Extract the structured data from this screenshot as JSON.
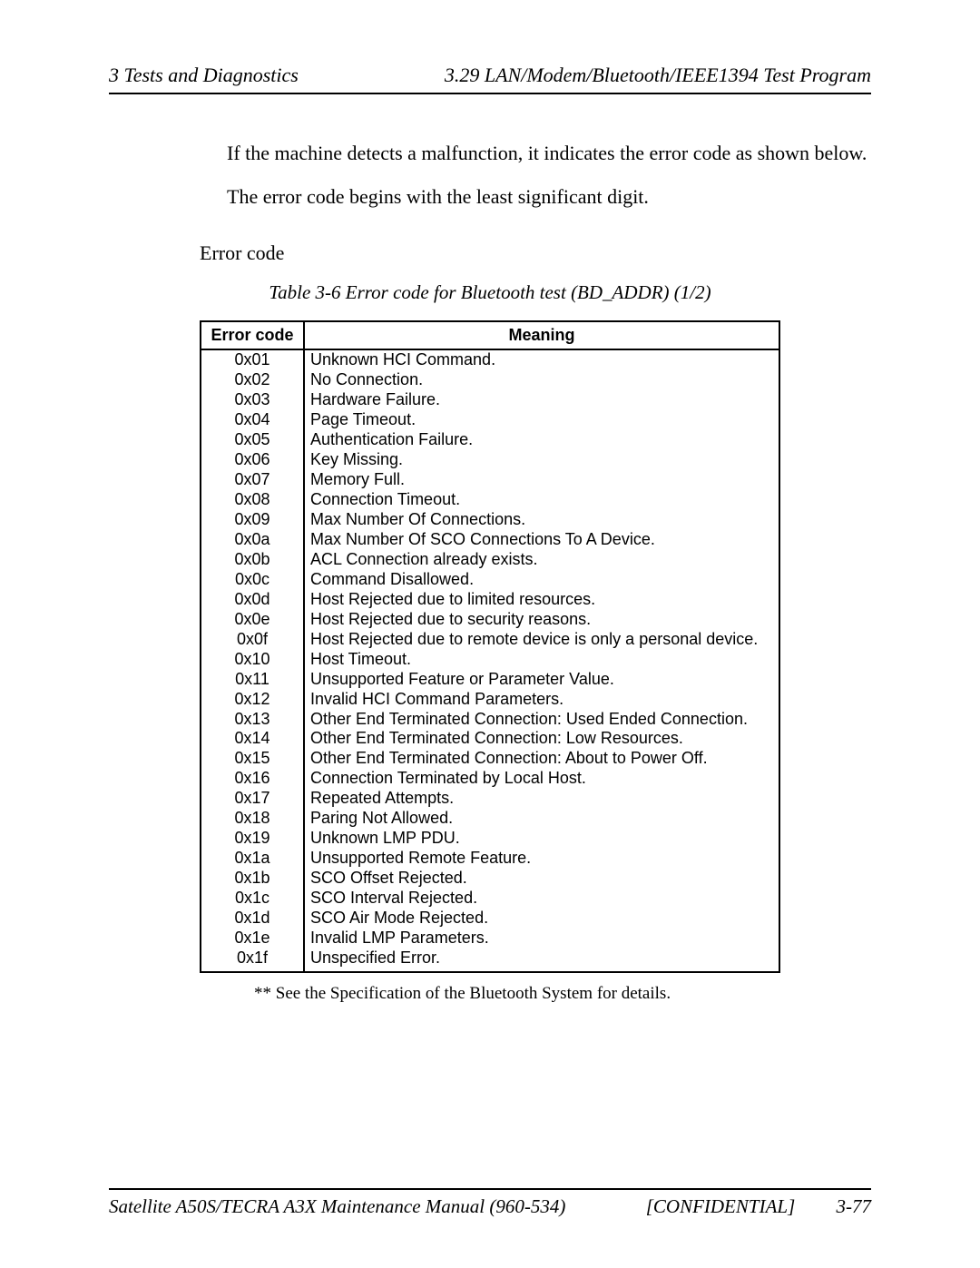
{
  "header": {
    "left": "3  Tests and Diagnostics",
    "right": "3.29  LAN/Modem/Bluetooth/IEEE1394 Test Program"
  },
  "body": {
    "p1": "If the machine detects a malfunction, it indicates the error code as shown below.",
    "p2": "The error code begins with the least significant digit.",
    "errorLabel": "Error code",
    "tableCaption": "Table 3-6  Error code for Bluetooth test (BD_ADDR) (1/2)",
    "footnote": "** See the Specification of the Bluetooth System for details."
  },
  "table": {
    "columns": {
      "code": "Error code",
      "meaning": "Meaning"
    },
    "rows": [
      {
        "code": "0x01",
        "meaning": "Unknown HCI Command."
      },
      {
        "code": "0x02",
        "meaning": "No Connection."
      },
      {
        "code": "0x03",
        "meaning": "Hardware Failure."
      },
      {
        "code": "0x04",
        "meaning": "Page Timeout."
      },
      {
        "code": "0x05",
        "meaning": "Authentication Failure."
      },
      {
        "code": "0x06",
        "meaning": "Key Missing."
      },
      {
        "code": "0x07",
        "meaning": "Memory Full."
      },
      {
        "code": "0x08",
        "meaning": "Connection Timeout."
      },
      {
        "code": "0x09",
        "meaning": "Max Number Of Connections."
      },
      {
        "code": "0x0a",
        "meaning": "Max Number Of SCO Connections To A Device."
      },
      {
        "code": "0x0b",
        "meaning": "ACL Connection already exists."
      },
      {
        "code": "0x0c",
        "meaning": "Command Disallowed."
      },
      {
        "code": "0x0d",
        "meaning": "Host Rejected due to limited resources."
      },
      {
        "code": "0x0e",
        "meaning": "Host Rejected due to security reasons."
      },
      {
        "code": "0x0f",
        "meaning": "Host Rejected due to remote device is only a personal device."
      },
      {
        "code": "0x10",
        "meaning": "Host Timeout."
      },
      {
        "code": "0x11",
        "meaning": "Unsupported Feature or Parameter Value."
      },
      {
        "code": "0x12",
        "meaning": "Invalid HCI Command Parameters."
      },
      {
        "code": "0x13",
        "meaning": "Other End Terminated Connection: Used Ended Connection."
      },
      {
        "code": "0x14",
        "meaning": "Other End Terminated Connection: Low Resources."
      },
      {
        "code": "0x15",
        "meaning": "Other End Terminated Connection: About to Power Off."
      },
      {
        "code": "0x16",
        "meaning": "Connection Terminated by Local Host."
      },
      {
        "code": "0x17",
        "meaning": "Repeated Attempts."
      },
      {
        "code": "0x18",
        "meaning": "Paring Not Allowed."
      },
      {
        "code": "0x19",
        "meaning": "Unknown LMP PDU."
      },
      {
        "code": "0x1a",
        "meaning": "Unsupported Remote Feature."
      },
      {
        "code": "0x1b",
        "meaning": "SCO Offset Rejected."
      },
      {
        "code": "0x1c",
        "meaning": "SCO Interval Rejected."
      },
      {
        "code": "0x1d",
        "meaning": "SCO Air Mode Rejected."
      },
      {
        "code": "0x1e",
        "meaning": "Invalid LMP Parameters."
      },
      {
        "code": "0x1f",
        "meaning": "Unspecified Error."
      }
    ]
  },
  "footer": {
    "left": "Satellite A50S/TECRA A3X  Maintenance Manual (960-534)",
    "mid": "[CONFIDENTIAL]",
    "right": "3-77"
  }
}
